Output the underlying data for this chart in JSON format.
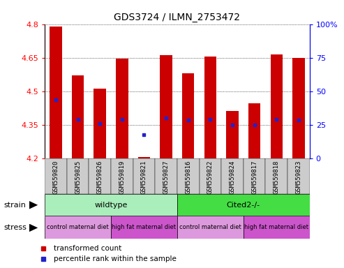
{
  "title": "GDS3724 / ILMN_2753472",
  "samples": [
    "GSM559820",
    "GSM559825",
    "GSM559826",
    "GSM559819",
    "GSM559821",
    "GSM559827",
    "GSM559816",
    "GSM559822",
    "GSM559824",
    "GSM559817",
    "GSM559818",
    "GSM559823"
  ],
  "bar_values": [
    4.79,
    4.57,
    4.51,
    4.645,
    4.205,
    4.66,
    4.58,
    4.655,
    4.41,
    4.445,
    4.665,
    4.65
  ],
  "blue_values": [
    4.46,
    4.375,
    4.355,
    4.375,
    4.305,
    4.38,
    4.37,
    4.375,
    4.35,
    4.35,
    4.375,
    4.37
  ],
  "ymin": 4.2,
  "ymax": 4.8,
  "yticks": [
    4.2,
    4.35,
    4.5,
    4.65,
    4.8
  ],
  "right_ytick_vals": [
    4.2,
    4.35,
    4.5,
    4.65,
    4.8
  ],
  "right_ytick_labels": [
    "0",
    "25",
    "50",
    "75",
    "100%"
  ],
  "bar_color": "#cc0000",
  "blue_color": "#2222cc",
  "bar_width": 0.55,
  "wildtype_color": "#aaeebb",
  "cited_color": "#44dd44",
  "stress_light_color": "#dd99dd",
  "stress_dark_color": "#cc55cc",
  "legend_red_label": "transformed count",
  "legend_blue_label": "percentile rank within the sample",
  "title_fontsize": 10,
  "tick_fontsize": 8,
  "xlabel_fontsize": 6.5
}
